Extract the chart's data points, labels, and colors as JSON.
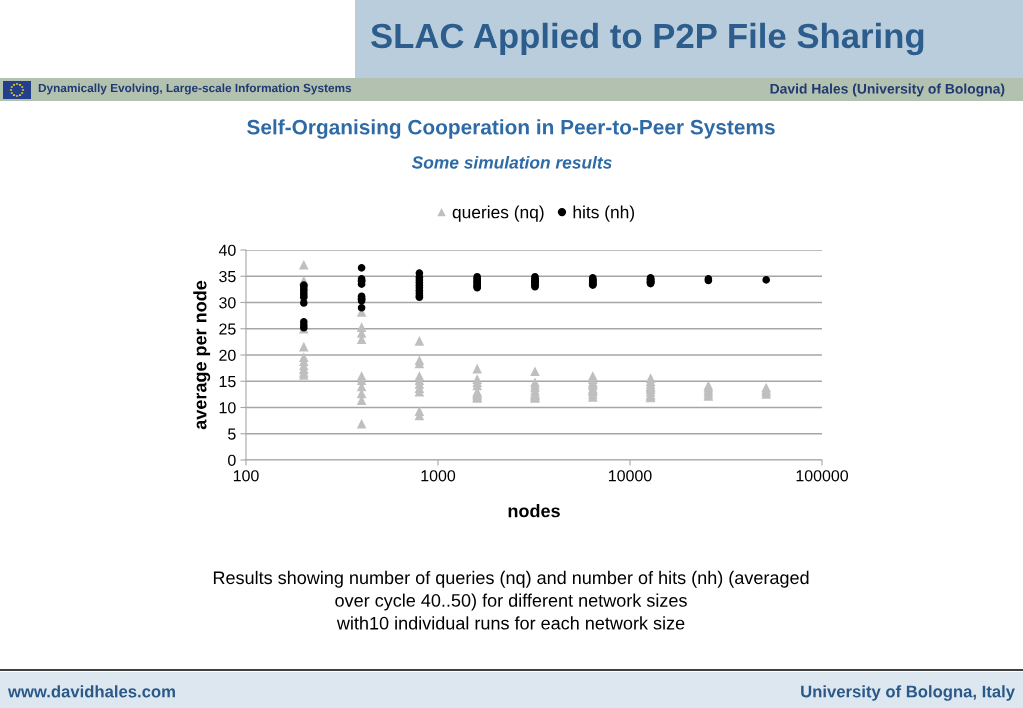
{
  "chart_data": {
    "type": "scatter",
    "title": "SLAC Applied to P2P File Sharing",
    "subtitle": "Self-Organising Cooperation in Peer-to-Peer Systems",
    "annotations": [
      "Dynamically Evolving, Large-scale Information Systems",
      "David Hales (University of Bologna)",
      "Some simulation results",
      "Results showing number of queries (nq) and number of hits (nh) (averaged\nover cycle 40..50) for different network sizes\nwith10 individual runs for each network size",
      "www.davidhales.com",
      "University of Bologna, Italy"
    ],
    "xlabel": "nodes",
    "ylabel": "average per node",
    "x": [
      200,
      200,
      200,
      200,
      200,
      200,
      200,
      200,
      200,
      200,
      400,
      400,
      400,
      400,
      400,
      400,
      400,
      400,
      400,
      400,
      800,
      800,
      800,
      800,
      800,
      800,
      800,
      800,
      800,
      800,
      1600,
      1600,
      1600,
      1600,
      1600,
      1600,
      1600,
      1600,
      1600,
      1600,
      3200,
      3200,
      3200,
      3200,
      3200,
      3200,
      3200,
      3200,
      3200,
      3200,
      6400,
      6400,
      6400,
      6400,
      6400,
      6400,
      6400,
      6400,
      6400,
      6400,
      12800,
      12800,
      12800,
      12800,
      12800,
      12800,
      12800,
      12800,
      12800,
      12800,
      25600,
      25600,
      25600,
      25600,
      25600,
      25600,
      51200,
      51200,
      51200,
      51200
    ],
    "series": [
      {
        "name": "queries (nq)",
        "marker": "triangle",
        "color": "#bfbfbf",
        "values": [
          37.2,
          34.2,
          25.0,
          21.6,
          19.6,
          18.8,
          18.0,
          17.3,
          16.7,
          16.2,
          28.2,
          25.3,
          24.2,
          23.0,
          16.0,
          15.2,
          14.0,
          12.7,
          11.4,
          6.9,
          22.7,
          19.0,
          18.4,
          16.0,
          15.2,
          14.5,
          13.7,
          13.0,
          9.3,
          8.5,
          17.4,
          15.4,
          14.8,
          14.2,
          13.0,
          12.6,
          12.3,
          12.0,
          11.8,
          12.8,
          16.9,
          14.8,
          14.3,
          13.8,
          13.2,
          12.7,
          12.3,
          12.0,
          11.8,
          12.5,
          16.0,
          15.4,
          14.8,
          14.2,
          13.6,
          13.0,
          12.5,
          12.0,
          13.3,
          14.5,
          15.6,
          15.0,
          14.5,
          14.0,
          13.5,
          13.0,
          12.4,
          11.9,
          12.2,
          13.8,
          14.2,
          13.8,
          13.4,
          13.0,
          12.6,
          12.2,
          13.8,
          13.4,
          13.0,
          12.6
        ]
      },
      {
        "name": "hits (nh)",
        "marker": "circle",
        "color": "#000000",
        "values": [
          33.3,
          33.0,
          32.5,
          32.0,
          31.5,
          31.0,
          29.9,
          26.3,
          25.7,
          25.2,
          36.6,
          34.5,
          34.2,
          34.0,
          33.5,
          31.2,
          30.8,
          30.6,
          30.3,
          29.0,
          35.6,
          34.8,
          34.3,
          33.8,
          33.3,
          32.8,
          32.3,
          31.8,
          31.3,
          31.0,
          34.9,
          34.6,
          34.3,
          34.0,
          33.8,
          33.5,
          33.2,
          33.0,
          32.8,
          null,
          34.9,
          34.6,
          34.3,
          34.0,
          33.7,
          33.4,
          33.2,
          33.0,
          34.2,
          33.8,
          34.7,
          34.4,
          null,
          33.8,
          33.5,
          33.3,
          34.0,
          33.6,
          34.2,
          null,
          34.7,
          34.4,
          34.1,
          33.8,
          33.6,
          34.0,
          34.3,
          33.9,
          34.5,
          33.7,
          34.5,
          34.2,
          null,
          null,
          null,
          null,
          34.3,
          null,
          null,
          null
        ]
      }
    ],
    "log": "x",
    "xlim": [
      100,
      100000
    ],
    "xticks": [
      100,
      1000,
      10000,
      100000
    ],
    "ylim": [
      0,
      40
    ],
    "yticks": [
      0,
      5,
      10,
      15,
      20,
      25,
      30,
      35,
      40
    ],
    "grid": "y",
    "legend": "top"
  }
}
